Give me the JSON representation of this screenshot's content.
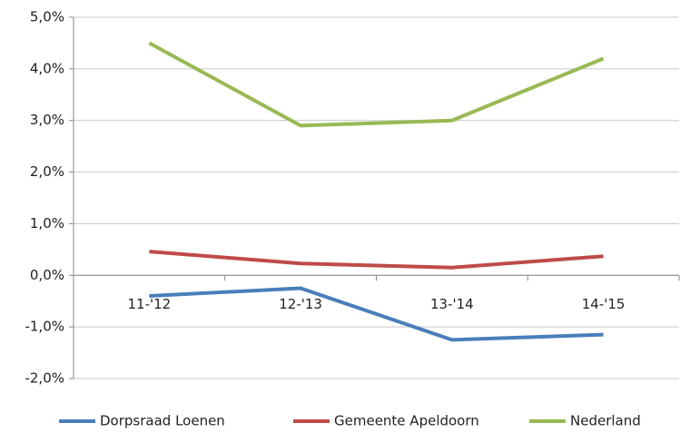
{
  "chart_data": {
    "type": "line",
    "categories": [
      "11-'12",
      "12-'13",
      "13-'14",
      "14-'15"
    ],
    "series": [
      {
        "name": "Dorpsraad Loenen",
        "color": "#4a7ebb",
        "values": [
          -0.4,
          -0.25,
          -1.25,
          -1.15
        ]
      },
      {
        "name": "Gemeente Apeldoorn",
        "color": "#be4b48",
        "values": [
          0.46,
          0.23,
          0.15,
          0.37
        ]
      },
      {
        "name": "Nederland",
        "color": "#98b954",
        "values": [
          4.5,
          2.9,
          3.0,
          4.2
        ]
      }
    ],
    "ylim": [
      -2,
      5
    ],
    "yticks": [
      {
        "value": -2,
        "label": "-2,0%"
      },
      {
        "value": -1,
        "label": "-1,0%"
      },
      {
        "value": 0,
        "label": "0,0%"
      },
      {
        "value": 1,
        "label": "1,0%"
      },
      {
        "value": 2,
        "label": "2,0%"
      },
      {
        "value": 3,
        "label": "3,0%"
      },
      {
        "value": 4,
        "label": "4,0%"
      },
      {
        "value": 5,
        "label": "5,0%"
      }
    ],
    "grid": true,
    "legend": "bottom"
  }
}
